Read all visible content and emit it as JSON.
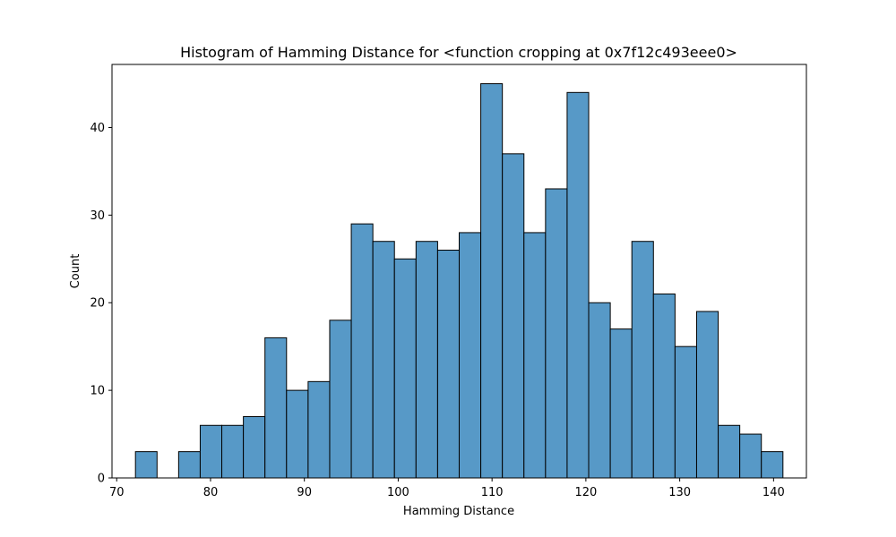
{
  "chart_data": {
    "type": "bar",
    "title": "Histogram of Hamming Distance for <function cropping at 0x7f12c493eee0>",
    "xlabel": "Hamming Distance",
    "ylabel": "Count",
    "xlim": [
      69.5,
      143.5
    ],
    "ylim": [
      0,
      47.2
    ],
    "bin_width": 2.3,
    "bins": [
      {
        "start": 72.0,
        "count": 3
      },
      {
        "start": 74.3,
        "count": 0
      },
      {
        "start": 76.6,
        "count": 3
      },
      {
        "start": 78.9,
        "count": 6
      },
      {
        "start": 81.2,
        "count": 6
      },
      {
        "start": 83.5,
        "count": 7
      },
      {
        "start": 85.8,
        "count": 16
      },
      {
        "start": 88.1,
        "count": 10
      },
      {
        "start": 90.4,
        "count": 11
      },
      {
        "start": 92.7,
        "count": 18
      },
      {
        "start": 95.0,
        "count": 29
      },
      {
        "start": 97.3,
        "count": 27
      },
      {
        "start": 99.6,
        "count": 25
      },
      {
        "start": 101.9,
        "count": 27
      },
      {
        "start": 104.2,
        "count": 26
      },
      {
        "start": 106.5,
        "count": 28
      },
      {
        "start": 108.8,
        "count": 45
      },
      {
        "start": 111.1,
        "count": 37
      },
      {
        "start": 113.4,
        "count": 28
      },
      {
        "start": 115.7,
        "count": 33
      },
      {
        "start": 118.0,
        "count": 44
      },
      {
        "start": 120.3,
        "count": 20
      },
      {
        "start": 122.6,
        "count": 17
      },
      {
        "start": 124.9,
        "count": 27
      },
      {
        "start": 127.2,
        "count": 21
      },
      {
        "start": 129.5,
        "count": 15
      },
      {
        "start": 131.8,
        "count": 19
      },
      {
        "start": 134.1,
        "count": 6
      },
      {
        "start": 136.4,
        "count": 5
      },
      {
        "start": 138.7,
        "count": 3
      }
    ],
    "x_ticks": [
      70,
      80,
      90,
      100,
      110,
      120,
      130,
      140
    ],
    "y_ticks": [
      0,
      10,
      20,
      30,
      40
    ],
    "grid": false,
    "bar_color": "#5799c7",
    "edge_color": "#000000"
  }
}
